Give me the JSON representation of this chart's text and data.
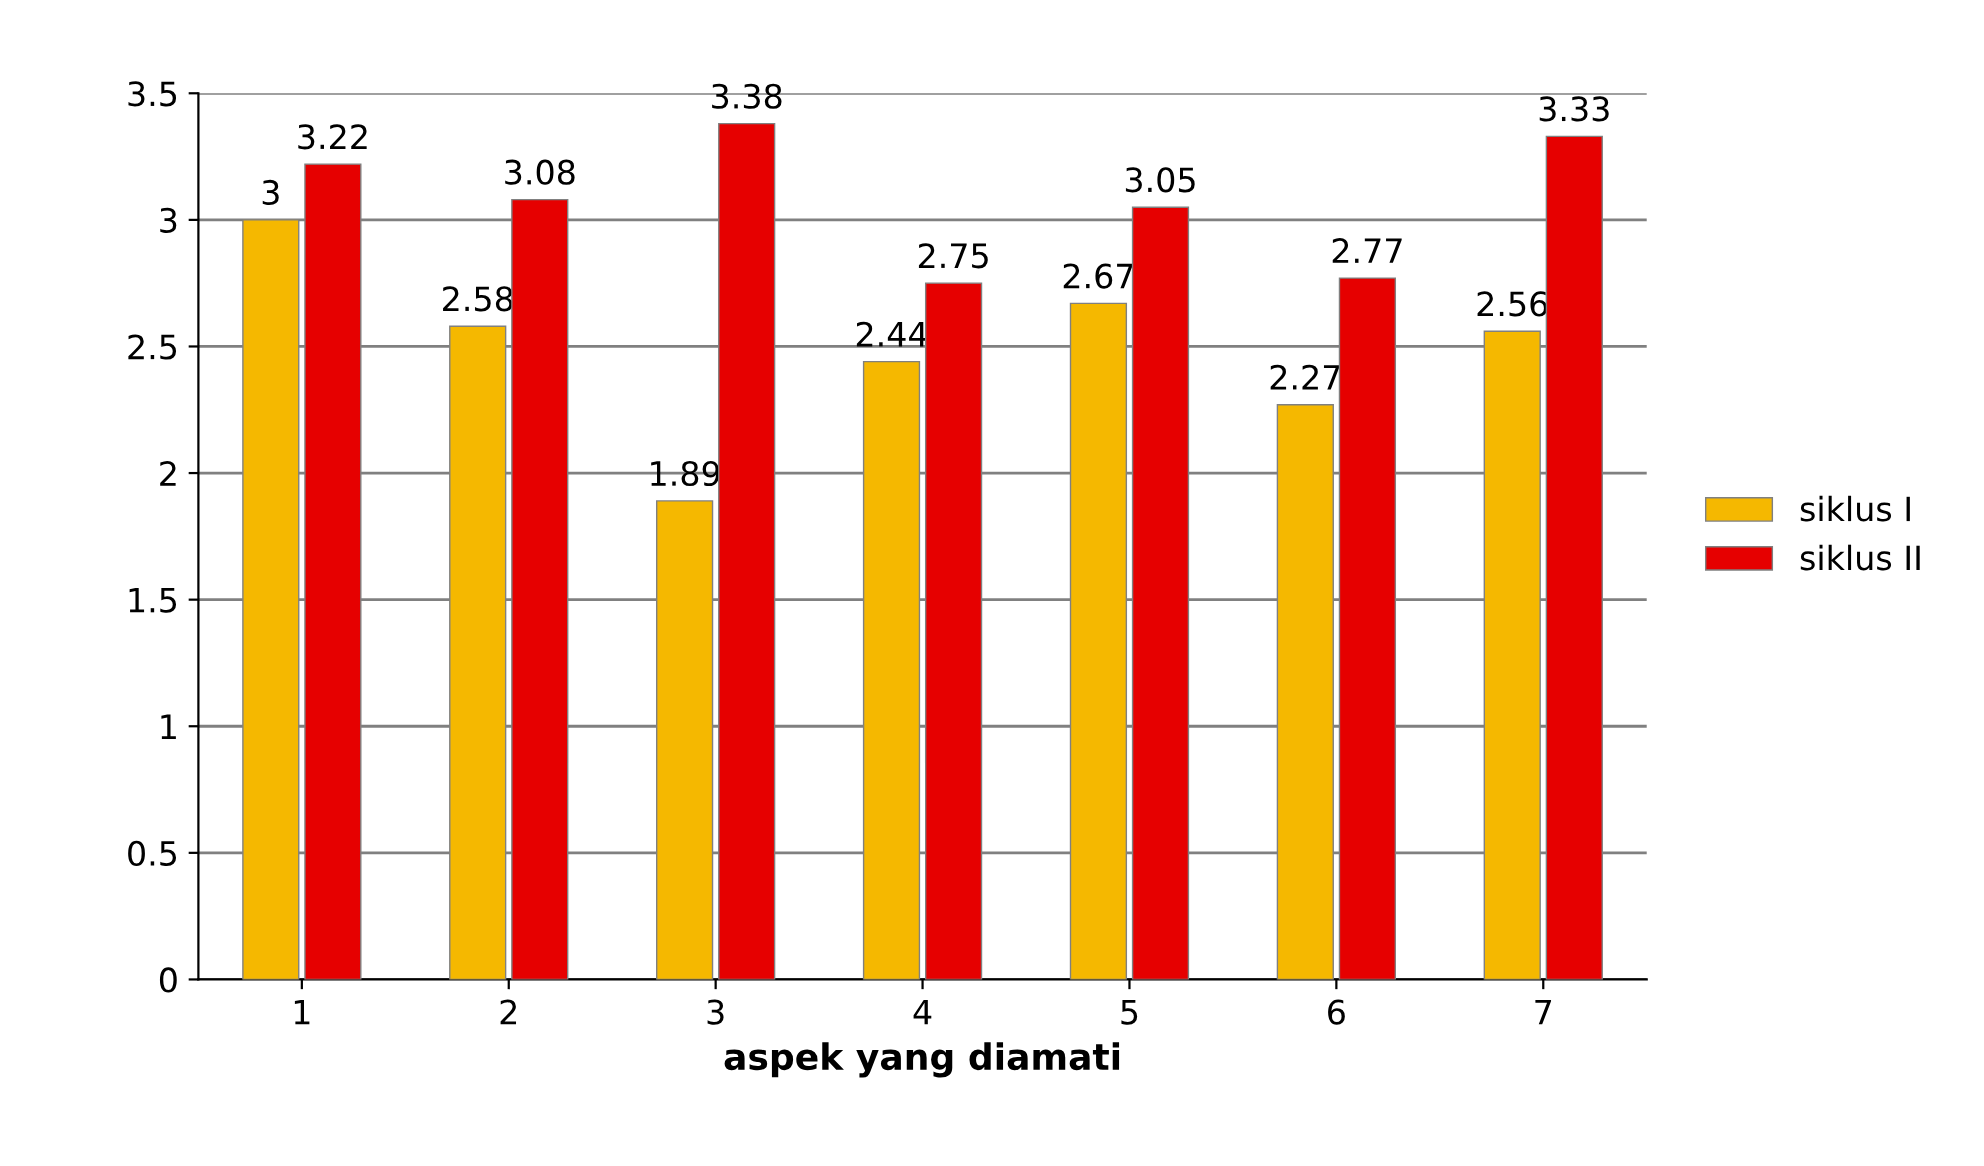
{
  "chart_data": {
    "type": "bar",
    "xlabel": "aspek yang diamati",
    "categories": [
      "1",
      "2",
      "3",
      "4",
      "5",
      "6",
      "7"
    ],
    "series": [
      {
        "name": "siklus I",
        "color": "#f5b800",
        "values": [
          3,
          2.58,
          1.89,
          2.44,
          2.67,
          2.27,
          2.56
        ]
      },
      {
        "name": "siklus II",
        "color": "#e60000",
        "values": [
          3.22,
          3.08,
          3.38,
          2.75,
          3.05,
          2.77,
          3.33
        ]
      }
    ],
    "ylim": [
      0,
      3.5
    ],
    "yticks": [
      0,
      0.5,
      1,
      1.5,
      2,
      2.5,
      3,
      3.5
    ],
    "grid": "y",
    "legend": "right",
    "data_labels": true
  }
}
